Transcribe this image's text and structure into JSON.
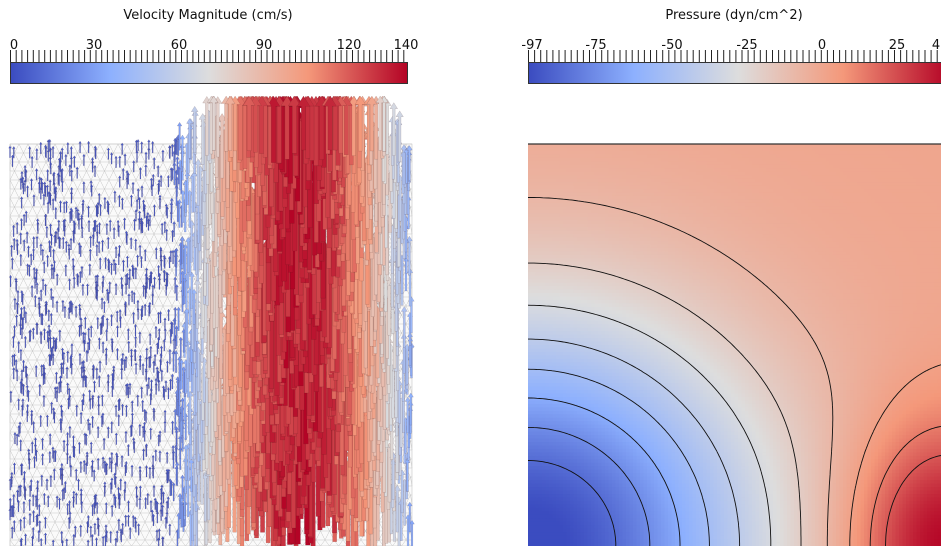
{
  "velocity": {
    "title": "Velocity Magnitude (cm/s)",
    "ticks": [
      "0",
      "30",
      "60",
      "90",
      "120",
      "140"
    ],
    "colormap": [
      "#3b4cc0",
      "#8db0fe",
      "#dddddd",
      "#f4987a",
      "#b40426"
    ]
  },
  "pressure": {
    "title": "Pressure (dyn/cm^2)",
    "ticks": [
      "-97",
      "-75",
      "-50",
      "-25",
      "0",
      "25",
      "4"
    ],
    "colormap": [
      "#3b4cc0",
      "#8db0fe",
      "#dddddd",
      "#f4987a",
      "#b40426"
    ]
  }
}
